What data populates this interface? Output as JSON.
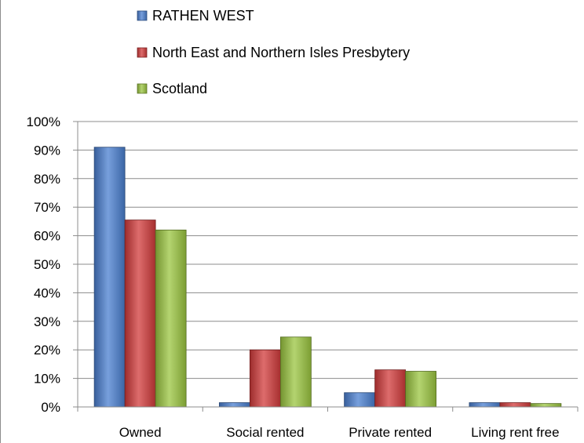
{
  "chart_data": {
    "type": "bar",
    "categories": [
      "Owned",
      "Social rented",
      "Private rented",
      "Living rent free"
    ],
    "series": [
      {
        "name": "RATHEN WEST",
        "color": "#4a7fd0",
        "values": [
          91,
          1.5,
          5,
          1.5
        ]
      },
      {
        "name": "North East and Northern Isles Presbytery",
        "color": "#d13b3b",
        "values": [
          65.5,
          20,
          13,
          1.5
        ]
      },
      {
        "name": "Scotland",
        "color": "#9bc540",
        "values": [
          62,
          24.5,
          12.5,
          1.2
        ]
      }
    ],
    "ylim": [
      0,
      100
    ],
    "yticks": [
      "0%",
      "10%",
      "20%",
      "30%",
      "40%",
      "50%",
      "60%",
      "70%",
      "80%",
      "90%",
      "100%"
    ],
    "grid": true,
    "legend_position": "top-left"
  }
}
